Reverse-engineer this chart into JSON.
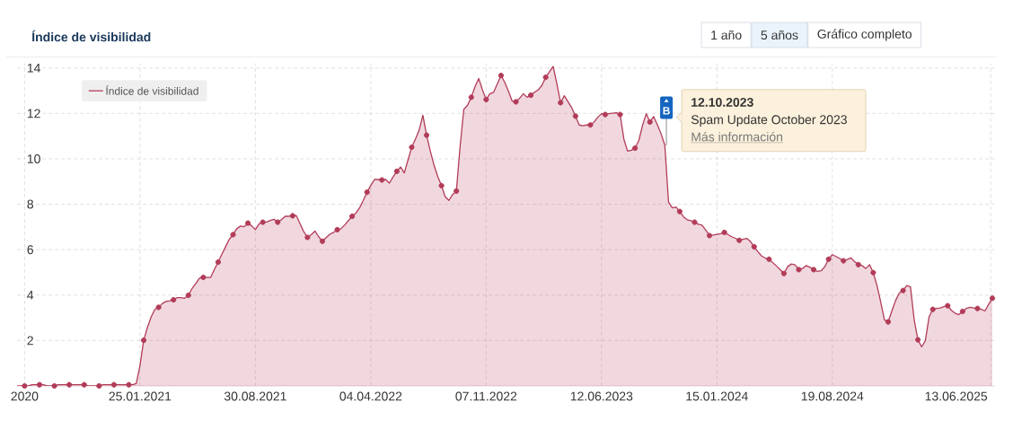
{
  "chart_data": {
    "type": "area",
    "title": "Índice de visibilidad",
    "x": [
      "2020-06-08",
      "2020-06-15",
      "2020-06-22",
      "2020-06-29",
      "2020-07-06",
      "2020-07-13",
      "2020-07-20",
      "2020-07-27",
      "2020-08-03",
      "2020-08-10",
      "2020-08-17",
      "2020-08-24",
      "2020-08-31",
      "2020-09-07",
      "2020-09-14",
      "2020-09-21",
      "2020-09-28",
      "2020-10-05",
      "2020-10-12",
      "2020-10-19",
      "2020-10-26",
      "2020-11-02",
      "2020-11-09",
      "2020-11-16",
      "2020-11-23",
      "2020-11-30",
      "2020-12-07",
      "2020-12-14",
      "2020-12-21",
      "2020-12-28",
      "2021-01-04",
      "2021-01-11",
      "2021-01-18",
      "2021-01-25",
      "2021-02-01",
      "2021-02-08",
      "2021-02-15",
      "2021-02-22",
      "2021-03-01",
      "2021-03-08",
      "2021-03-15",
      "2021-03-22",
      "2021-03-29",
      "2021-04-05",
      "2021-04-12",
      "2021-04-19",
      "2021-04-26",
      "2021-05-03",
      "2021-05-10",
      "2021-05-17",
      "2021-05-24",
      "2021-05-31",
      "2021-06-07",
      "2021-06-14",
      "2021-06-21",
      "2021-06-28",
      "2021-07-05",
      "2021-07-12",
      "2021-07-19",
      "2021-07-26",
      "2021-08-02",
      "2021-08-09",
      "2021-08-16",
      "2021-08-23",
      "2021-08-30",
      "2021-09-06",
      "2021-09-13",
      "2021-09-20",
      "2021-09-27",
      "2021-10-04",
      "2021-10-11",
      "2021-10-18",
      "2021-10-25",
      "2021-11-01",
      "2021-11-08",
      "2021-11-15",
      "2021-11-22",
      "2021-11-29",
      "2021-12-06",
      "2021-12-13",
      "2021-12-20",
      "2021-12-27",
      "2022-01-03",
      "2022-01-10",
      "2022-01-17",
      "2022-01-24",
      "2022-01-31",
      "2022-02-07",
      "2022-02-14",
      "2022-02-21",
      "2022-02-28",
      "2022-03-07",
      "2022-03-14",
      "2022-03-21",
      "2022-03-28",
      "2022-04-04",
      "2022-04-11",
      "2022-04-18",
      "2022-04-25",
      "2022-05-02",
      "2022-05-09",
      "2022-05-16",
      "2022-05-23",
      "2022-05-30",
      "2022-06-06",
      "2022-06-13",
      "2022-06-20",
      "2022-06-27",
      "2022-07-04",
      "2022-07-11",
      "2022-07-18",
      "2022-07-25",
      "2022-08-01",
      "2022-08-08",
      "2022-08-15",
      "2022-08-22",
      "2022-08-29",
      "2022-09-05",
      "2022-09-12",
      "2022-09-19",
      "2022-09-26",
      "2022-10-03",
      "2022-10-10",
      "2022-10-17",
      "2022-10-24",
      "2022-10-31",
      "2022-11-07",
      "2022-11-14",
      "2022-11-21",
      "2022-11-28",
      "2022-12-05",
      "2022-12-12",
      "2022-12-19",
      "2022-12-26",
      "2023-01-02",
      "2023-01-09",
      "2023-01-16",
      "2023-01-23",
      "2023-01-30",
      "2023-02-06",
      "2023-02-13",
      "2023-02-20",
      "2023-02-27",
      "2023-03-06",
      "2023-03-13",
      "2023-03-20",
      "2023-03-27",
      "2023-04-03",
      "2023-04-10",
      "2023-04-17",
      "2023-04-24",
      "2023-05-01",
      "2023-05-08",
      "2023-05-15",
      "2023-05-22",
      "2023-05-29",
      "2023-06-05",
      "2023-06-12",
      "2023-06-19",
      "2023-06-26",
      "2023-07-03",
      "2023-07-10",
      "2023-07-17",
      "2023-07-24",
      "2023-07-31",
      "2023-08-07",
      "2023-08-14",
      "2023-08-21",
      "2023-08-28",
      "2023-09-04",
      "2023-09-11",
      "2023-09-18",
      "2023-09-25",
      "2023-10-02",
      "2023-10-09",
      "2023-10-16",
      "2023-10-23",
      "2023-10-30",
      "2023-11-06",
      "2023-11-13",
      "2023-11-20",
      "2023-11-27",
      "2023-12-04",
      "2023-12-11",
      "2023-12-18",
      "2023-12-25",
      "2024-01-01",
      "2024-01-08",
      "2024-01-15",
      "2024-01-22",
      "2024-01-29",
      "2024-02-05",
      "2024-02-12",
      "2024-02-19",
      "2024-02-26",
      "2024-03-04",
      "2024-03-11",
      "2024-03-18",
      "2024-03-25",
      "2024-04-01",
      "2024-04-08",
      "2024-04-15",
      "2024-04-22",
      "2024-04-29",
      "2024-05-06",
      "2024-05-13",
      "2024-05-20",
      "2024-05-27",
      "2024-06-03",
      "2024-06-10",
      "2024-06-17",
      "2024-06-24",
      "2024-07-01",
      "2024-07-08",
      "2024-07-15",
      "2024-07-22",
      "2024-07-29",
      "2024-08-05",
      "2024-08-12",
      "2024-08-19",
      "2024-08-26",
      "2024-09-02",
      "2024-09-09",
      "2024-09-16",
      "2024-09-23",
      "2024-09-30",
      "2024-10-07",
      "2024-10-14",
      "2024-10-21",
      "2024-10-28",
      "2024-11-04",
      "2024-11-11",
      "2024-11-18",
      "2024-11-25",
      "2024-12-02",
      "2024-12-09",
      "2024-12-16",
      "2024-12-23",
      "2024-12-30",
      "2025-01-06",
      "2025-01-13",
      "2025-01-20",
      "2025-01-27",
      "2025-02-03",
      "2025-02-10",
      "2025-02-17",
      "2025-02-24",
      "2025-03-03",
      "2025-03-10",
      "2025-03-17",
      "2025-03-24",
      "2025-03-31",
      "2025-04-07",
      "2025-04-14",
      "2025-04-21",
      "2025-04-28",
      "2025-05-05",
      "2025-05-12",
      "2025-05-19",
      "2025-05-26",
      "2025-06-02",
      "2025-06-09",
      "2025-06-16"
    ],
    "series": [
      {
        "name": "Índice de visibilidad",
        "color": "#b23c58",
        "values": [
          0,
          0,
          0,
          0,
          0.05,
          0.05,
          0.05,
          0.05,
          0,
          0,
          0,
          0.05,
          0.05,
          0.05,
          0.05,
          0.05,
          0.05,
          0.05,
          0.05,
          0,
          0,
          0,
          0,
          0.05,
          0.05,
          0.05,
          0.05,
          0.05,
          0.05,
          0.05,
          0.05,
          0.05,
          0.1,
          0.9,
          2.01,
          2.58,
          3.04,
          3.37,
          3.46,
          3.63,
          3.72,
          3.75,
          3.79,
          3.89,
          3.89,
          3.86,
          3.99,
          4.29,
          4.51,
          4.75,
          4.78,
          4.78,
          4.78,
          5.14,
          5.45,
          5.8,
          6.13,
          6.46,
          6.66,
          6.92,
          7.04,
          7.01,
          7.17,
          7.05,
          6.88,
          7.14,
          7.21,
          7.22,
          7.29,
          7.34,
          7.21,
          7.32,
          7.47,
          7.47,
          7.49,
          7.5,
          7.14,
          6.79,
          6.54,
          6.66,
          6.82,
          6.57,
          6.37,
          6.53,
          6.68,
          6.76,
          6.88,
          6.92,
          7.09,
          7.28,
          7.47,
          7.61,
          7.84,
          8.17,
          8.53,
          8.83,
          9.09,
          9.09,
          9.07,
          9.09,
          8.93,
          9.2,
          9.45,
          9.64,
          9.38,
          9.95,
          10.51,
          10.87,
          11.26,
          11.92,
          11.04,
          10.34,
          9.72,
          9.22,
          8.82,
          8.33,
          8.17,
          8.43,
          8.58,
          10.54,
          12.18,
          12.36,
          12.71,
          13.17,
          13.54,
          13.04,
          12.61,
          12.87,
          12.93,
          13.3,
          13.67,
          13.37,
          12.97,
          12.54,
          12.51,
          12.67,
          12.87,
          12.71,
          12.8,
          12.93,
          13.04,
          13.24,
          13.59,
          13.83,
          14.07,
          13.3,
          12.47,
          12.78,
          12.51,
          12.25,
          11.88,
          11.49,
          11.46,
          11.49,
          11.49,
          11.62,
          11.83,
          11.99,
          11.95,
          11.99,
          12.01,
          12.03,
          11.95,
          10.87,
          10.34,
          10.38,
          10.47,
          10.8,
          11.46,
          11.99,
          11.62,
          11.86,
          11.5,
          11.1,
          10.6,
          8.1,
          7.84,
          7.88,
          7.68,
          7.45,
          7.32,
          7.28,
          7.21,
          7.12,
          7.08,
          6.86,
          6.62,
          6.64,
          6.67,
          6.7,
          6.76,
          6.66,
          6.57,
          6.5,
          6.41,
          6.46,
          6.5,
          6.36,
          6.13,
          5.91,
          5.72,
          5.63,
          5.58,
          5.43,
          5.28,
          5.12,
          4.95,
          5.25,
          5.37,
          5.33,
          5.12,
          5.17,
          5.3,
          5.22,
          5.12,
          5.04,
          5.07,
          5.25,
          5.58,
          5.78,
          5.7,
          5.61,
          5.51,
          5.57,
          5.64,
          5.47,
          5.34,
          5.3,
          5.17,
          5.34,
          4.99,
          4.42,
          3.7,
          2.91,
          2.82,
          3.3,
          3.76,
          4.09,
          4.2,
          4.42,
          4.36,
          2.91,
          2.03,
          1.72,
          1.99,
          3.04,
          3.37,
          3.41,
          3.43,
          3.49,
          3.53,
          3.33,
          3.2,
          3.14,
          3.28,
          3.41,
          3.46,
          3.43,
          3.41,
          3.37,
          3.3,
          3.59,
          3.86
        ]
      },
      {
        "type": "scatter",
        "color": "#b23c58",
        "marker": "circle",
        "x": [
          "2020-06-22",
          "2020-07-20",
          "2020-08-17",
          "2020-09-14",
          "2020-10-12",
          "2020-11-09",
          "2020-12-07",
          "2021-01-04",
          "2021-02-01",
          "2021-03-01",
          "2021-03-29",
          "2021-04-26",
          "2021-05-24",
          "2021-06-21",
          "2021-07-19",
          "2021-08-16",
          "2021-09-13",
          "2021-10-11",
          "2021-11-08",
          "2021-12-06",
          "2022-01-03",
          "2022-01-31",
          "2022-02-28",
          "2022-03-28",
          "2022-04-25",
          "2022-05-23",
          "2022-06-20",
          "2022-07-18",
          "2022-08-15",
          "2022-09-12",
          "2022-10-10",
          "2022-11-07",
          "2022-12-05",
          "2023-01-02",
          "2023-01-30",
          "2023-02-27",
          "2023-03-27",
          "2023-04-24",
          "2023-05-22",
          "2023-06-19",
          "2023-07-17",
          "2023-08-14",
          "2023-09-11",
          "2023-10-09",
          "2023-11-06",
          "2023-12-04",
          "2024-01-01",
          "2024-01-29",
          "2024-02-26",
          "2024-03-25",
          "2024-04-22",
          "2024-05-20",
          "2024-06-17",
          "2024-07-15",
          "2024-08-12",
          "2024-09-09",
          "2024-10-07",
          "2024-11-04",
          "2024-12-02",
          "2024-12-30",
          "2025-01-27",
          "2025-02-24",
          "2025-03-24",
          "2025-04-21",
          "2025-05-19",
          "2025-06-16"
        ],
        "values": [
          0,
          0.05,
          0,
          0.05,
          0.05,
          0,
          0.05,
          0.05,
          2.01,
          3.46,
          3.79,
          3.99,
          4.78,
          5.45,
          6.66,
          7.17,
          7.21,
          7.21,
          7.49,
          6.54,
          6.37,
          6.88,
          7.47,
          8.53,
          9.07,
          9.45,
          10.51,
          11.04,
          8.82,
          8.58,
          12.71,
          12.61,
          13.67,
          12.51,
          12.8,
          13.59,
          12.47,
          11.88,
          11.49,
          11.95,
          11.95,
          10.47,
          11.62,
          null,
          7.68,
          7.21,
          6.62,
          6.76,
          6.41,
          6.13,
          5.58,
          4.95,
          5.12,
          5.12,
          5.58,
          5.51,
          5.34,
          4.99,
          2.82,
          4.2,
          2.03,
          3.37,
          3.53,
          3.28,
          3.41,
          3.86
        ]
      }
    ],
    "xlim": [
      "2020-06-08",
      "2025-06-20"
    ],
    "xticks": [
      {
        "value": "2020-06-22",
        "label": "2020"
      },
      {
        "value": "2021-01-25",
        "label": "25.01.2021"
      },
      {
        "value": "2021-08-30",
        "label": "30.08.2021"
      },
      {
        "value": "2022-04-04",
        "label": "04.04.2022"
      },
      {
        "value": "2022-11-07",
        "label": "07.11.2022"
      },
      {
        "value": "2023-06-12",
        "label": "12.06.2023"
      },
      {
        "value": "2024-01-15",
        "label": "15.01.2024"
      },
      {
        "value": "2024-08-19",
        "label": "19.08.2024"
      },
      {
        "value": "2025-06-13",
        "label": "13.06.2025"
      }
    ],
    "ylim": [
      0,
      14.2
    ],
    "yticks": [
      2,
      4,
      6,
      8,
      10,
      12,
      14
    ],
    "grid": true,
    "legend": "top left",
    "ref_lines": [
      {
        "axis": "x",
        "value": "2023-10-12",
        "label": "B",
        "color": "#8a8a8a"
      }
    ],
    "annotations": [
      "1 año",
      "5 años",
      "Gráfico completo",
      {
        "text": "12.10.2023",
        "x": "2023-10-12"
      },
      {
        "text": "Spam Update October 2023",
        "x": "2023-10-12"
      },
      {
        "text": "Más información",
        "x": "2023-10-12"
      }
    ]
  }
}
